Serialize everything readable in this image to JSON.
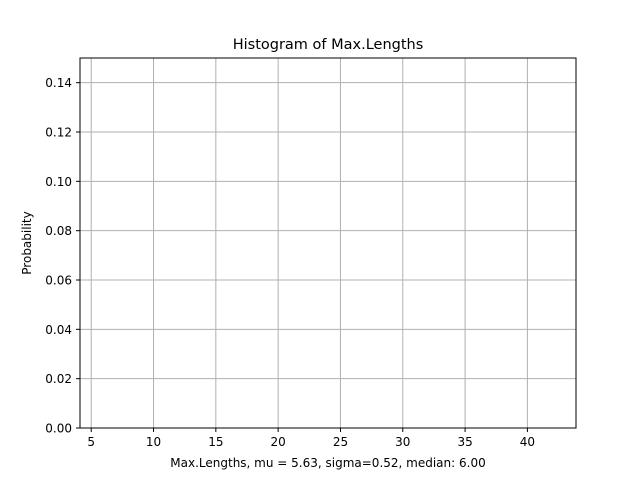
{
  "chart_data": {
    "type": "bar",
    "title": "Histogram of Max.Lengths",
    "xlabel": "Max.Lengths, mu = 5.63, sigma=0.52, median: 6.00",
    "ylabel": "Probability",
    "xlim": [
      4.1,
      43.9
    ],
    "ylim": [
      0,
      0.15
    ],
    "xticks": [
      5,
      10,
      15,
      20,
      25,
      30,
      35,
      40
    ],
    "yticks": [
      0.0,
      0.02,
      0.04,
      0.06,
      0.08,
      0.1,
      0.12,
      0.14
    ],
    "xtick_labels": [
      "5",
      "10",
      "15",
      "20",
      "25",
      "30",
      "35",
      "40"
    ],
    "ytick_labels": [
      "0.00",
      "0.02",
      "0.04",
      "0.06",
      "0.08",
      "0.10",
      "0.12",
      "0.14"
    ],
    "grid": true,
    "series": [],
    "colors": {
      "grid": "#b0b0b0",
      "axis": "#000000"
    }
  }
}
